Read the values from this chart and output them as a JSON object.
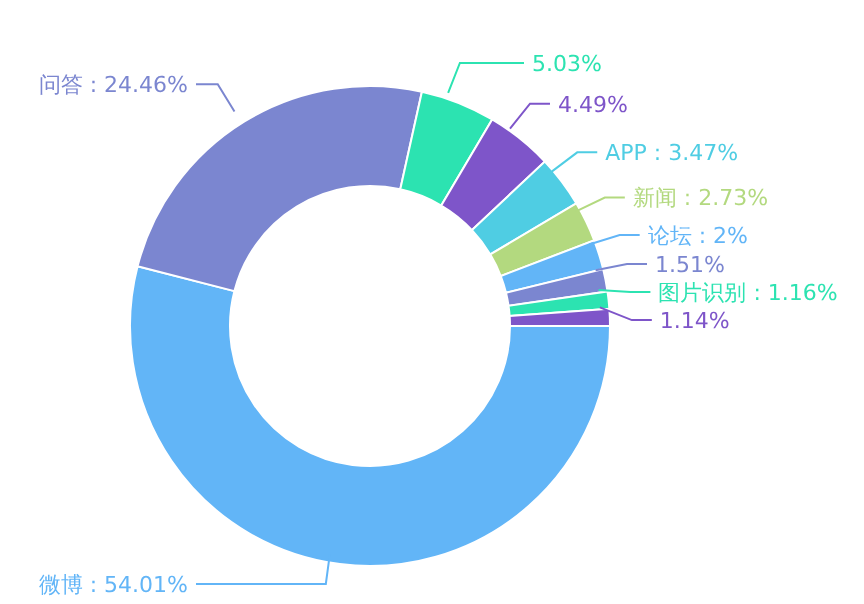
{
  "chart_data": {
    "type": "donut",
    "categories": [
      "微博",
      "问答",
      null,
      null,
      "APP",
      "新闻",
      "论坛",
      null,
      "图片识别",
      null
    ],
    "values": [
      54.01,
      24.46,
      5.03,
      4.49,
      3.47,
      2.73,
      2,
      1.51,
      1.16,
      1.14
    ],
    "value_labels": [
      ": 54.01%",
      ": 24.46%",
      "5.03%",
      "4.49%",
      ": 3.47%",
      ": 2.73%",
      ": 2%",
      "1.51%",
      ": 1.16%",
      "1.14%"
    ],
    "colors": [
      "#62b5f7",
      "#7b86d0",
      "#2ce3b1",
      "#7e55c9",
      "#4fcde3",
      "#b3d97f",
      "#62b5f7",
      "#7b86d0",
      "#2ce3b1",
      "#7e55c9"
    ]
  }
}
